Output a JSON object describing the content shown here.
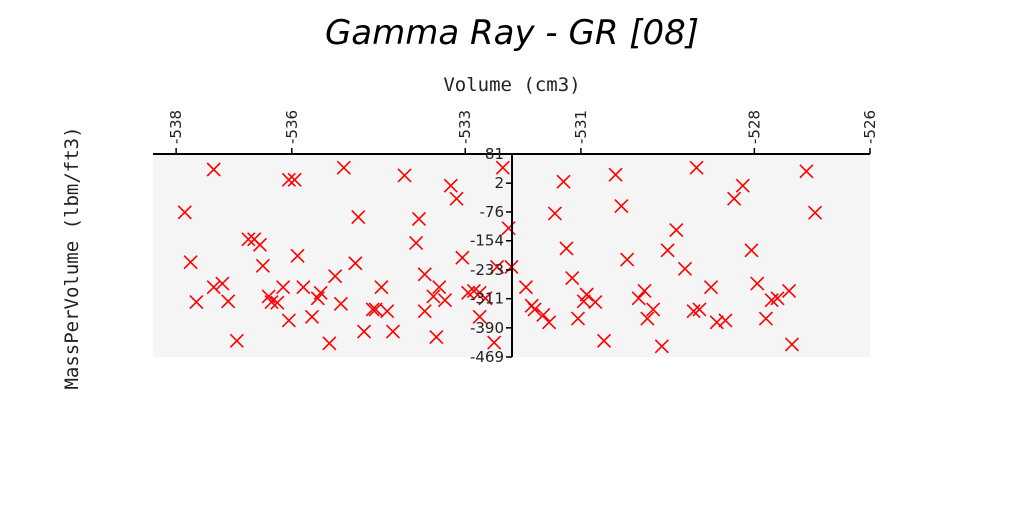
{
  "chart_data": {
    "type": "scatter",
    "title": "Gamma Ray - GR [08]",
    "xlabel": "Volume (cm3)",
    "ylabel": "MassPerVolume (lbm/ft3)",
    "xlim": [
      -538.4,
      -526.0
    ],
    "ylim": [
      -469,
      81
    ],
    "x_ticks": [
      -538,
      -536,
      -533,
      -531,
      -528,
      -526
    ],
    "x_tick_labels": [
      "-538",
      "-536",
      "-533",
      "-531",
      "-528",
      "-526"
    ],
    "y_ticks": [
      81,
      2,
      -76,
      -154,
      -233,
      -311,
      -390,
      -469
    ],
    "y_tick_labels": [
      "81",
      "2",
      "-76",
      "-154",
      "-233",
      "-311",
      "-390",
      "-469"
    ],
    "grid": false,
    "marker": "x",
    "colors": {
      "marker": "#ff0000",
      "plot_bg": "#f5f5f5",
      "axis": "#000000"
    },
    "series": [
      {
        "points": [
          [
            -537.85,
            -77
          ],
          [
            -537.35,
            39
          ],
          [
            -537.75,
            -212
          ],
          [
            -537.65,
            -320
          ],
          [
            -537.2,
            -270
          ],
          [
            -537.35,
            -280
          ],
          [
            -537.1,
            -318
          ],
          [
            -536.95,
            -425
          ],
          [
            -536.55,
            -165
          ],
          [
            -536.5,
            -222
          ],
          [
            -536.75,
            -150
          ],
          [
            -536.65,
            -150
          ],
          [
            -536.35,
            -320
          ],
          [
            -536.4,
            -305
          ],
          [
            -536.15,
            -280
          ],
          [
            -536.05,
            -370
          ],
          [
            -536.25,
            -322
          ],
          [
            -535.9,
            -195
          ],
          [
            -535.95,
            11
          ],
          [
            -536.05,
            11
          ],
          [
            -535.8,
            -280
          ],
          [
            -535.55,
            -310
          ],
          [
            -535.5,
            -295
          ],
          [
            -535.65,
            -360
          ],
          [
            -535.35,
            -432
          ],
          [
            -535.15,
            -325
          ],
          [
            -535.25,
            -250
          ],
          [
            -535.1,
            44
          ],
          [
            -534.9,
            -215
          ],
          [
            -534.75,
            -400
          ],
          [
            -534.85,
            -90
          ],
          [
            -534.6,
            -340
          ],
          [
            -534.55,
            -340
          ],
          [
            -534.45,
            -280
          ],
          [
            -534.35,
            -345
          ],
          [
            -534.25,
            -400
          ],
          [
            -534.05,
            23
          ],
          [
            -533.85,
            -160
          ],
          [
            -533.7,
            -245
          ],
          [
            -533.7,
            -345
          ],
          [
            -533.8,
            -95
          ],
          [
            -533.55,
            -305
          ],
          [
            -533.45,
            -280
          ],
          [
            -533.35,
            -315
          ],
          [
            -533.5,
            -415
          ],
          [
            -533.25,
            -5
          ],
          [
            -533.15,
            -40
          ],
          [
            -533.05,
            -200
          ],
          [
            -532.95,
            -295
          ],
          [
            -532.75,
            -295
          ],
          [
            -532.85,
            -290
          ],
          [
            -532.65,
            -310
          ],
          [
            -532.75,
            -360
          ],
          [
            -532.5,
            -430
          ],
          [
            -532.45,
            -225
          ],
          [
            -532.35,
            44
          ],
          [
            -532.25,
            -120
          ],
          [
            -532.2,
            -225
          ],
          [
            -531.95,
            -280
          ],
          [
            -531.85,
            -330
          ],
          [
            -531.8,
            -340
          ],
          [
            -531.65,
            -355
          ],
          [
            -531.55,
            -375
          ],
          [
            -531.45,
            -80
          ],
          [
            -531.3,
            6
          ],
          [
            -531.25,
            -175
          ],
          [
            -531.15,
            -255
          ],
          [
            -531.05,
            -365
          ],
          [
            -530.95,
            -318
          ],
          [
            -530.9,
            -300
          ],
          [
            -530.75,
            -320
          ],
          [
            -530.6,
            -425
          ],
          [
            -530.4,
            25
          ],
          [
            -530.3,
            -60
          ],
          [
            -530.2,
            -205
          ],
          [
            -530.0,
            -310
          ],
          [
            -529.9,
            -290
          ],
          [
            -529.85,
            -365
          ],
          [
            -529.75,
            -340
          ],
          [
            -529.6,
            -440
          ],
          [
            -529.5,
            -180
          ],
          [
            -529.35,
            -125
          ],
          [
            -529.2,
            -230
          ],
          [
            -529.05,
            -345
          ],
          [
            -528.95,
            -340
          ],
          [
            -529.0,
            44
          ],
          [
            -528.75,
            -280
          ],
          [
            -528.65,
            -375
          ],
          [
            -528.5,
            -370
          ],
          [
            -528.35,
            -40
          ],
          [
            -528.2,
            -5
          ],
          [
            -528.05,
            -180
          ],
          [
            -527.95,
            -270
          ],
          [
            -527.8,
            -365
          ],
          [
            -527.7,
            -315
          ],
          [
            -527.6,
            -310
          ],
          [
            -527.4,
            -290
          ],
          [
            -527.35,
            -435
          ],
          [
            -527.1,
            34
          ],
          [
            -526.95,
            -78
          ]
        ]
      }
    ]
  }
}
